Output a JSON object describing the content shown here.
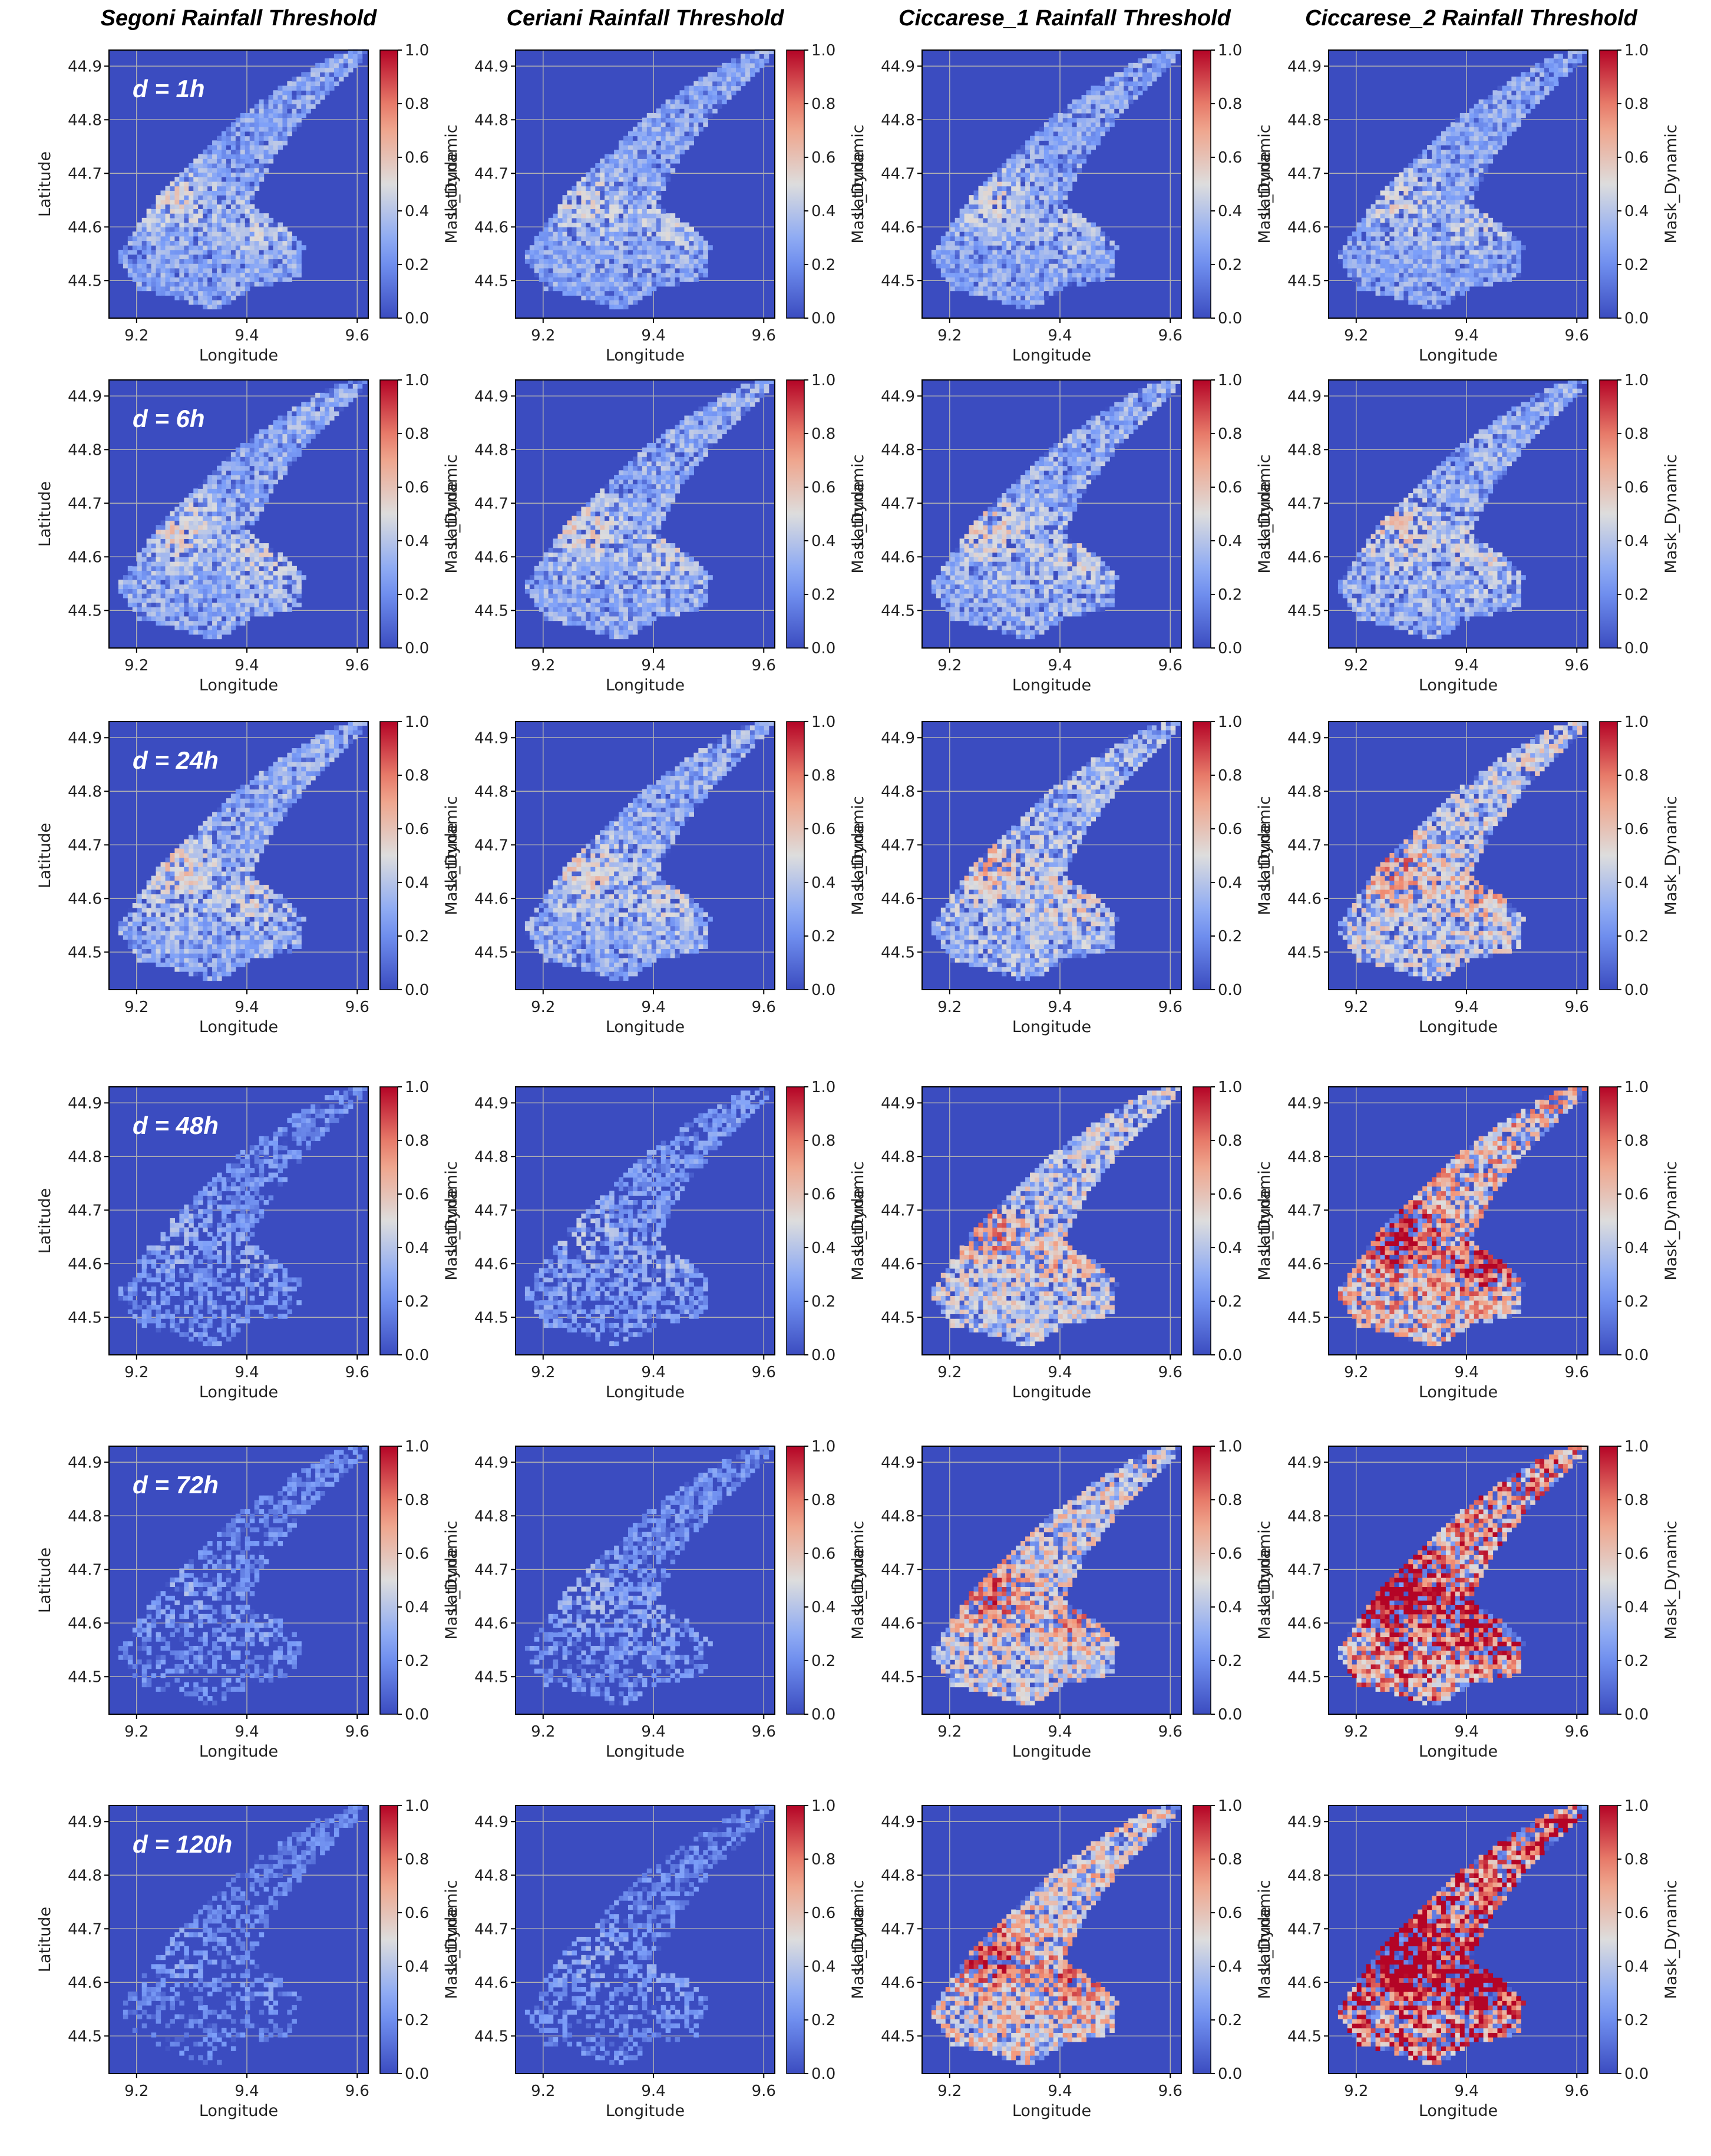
{
  "figure": {
    "columns": [
      "Segoni Rainfall Threshold",
      "Ceriani Rainfall Threshold",
      "Ciccarese_1 Rainfall Threshold",
      "Ciccarese_2 Rainfall Threshold"
    ],
    "rows": [
      "d = 1h",
      "d = 6h",
      "d = 24h",
      "d = 48h",
      "d = 72h",
      "d = 120h"
    ]
  },
  "chart_data": {
    "type": "heatmap",
    "layout": "6 rows x 4 columns of maps",
    "xlabel": "Longitude",
    "ylabel": "Latitude",
    "colorbar_label": "Mask_Dynamic",
    "colormap": "coolwarm",
    "colors": {
      "low": "#3b4cc0",
      "mid": "#dddddd",
      "high": "#b40426"
    },
    "xlim": [
      9.15,
      9.62
    ],
    "ylim": [
      44.43,
      44.93
    ],
    "xticks": [
      9.2,
      9.4,
      9.6
    ],
    "xtick_labels": [
      "9.2",
      "9.4",
      "9.6"
    ],
    "yticks": [
      44.5,
      44.6,
      44.7,
      44.8,
      44.9
    ],
    "ytick_labels": [
      "44.5",
      "44.6",
      "44.7",
      "44.8",
      "44.9"
    ],
    "colorbar_range": [
      0.0,
      1.0
    ],
    "colorbar_ticks": [
      0.0,
      0.2,
      0.4,
      0.6,
      0.8,
      1.0
    ],
    "colorbar_tick_labels": [
      "0.0",
      "0.2",
      "0.4",
      "0.6",
      "0.8",
      "1.0"
    ],
    "grid": true,
    "region_outline": [
      [
        9.62,
        44.93
      ],
      [
        9.58,
        44.88
      ],
      [
        9.5,
        44.8
      ],
      [
        9.44,
        44.72
      ],
      [
        9.4,
        44.64
      ],
      [
        9.46,
        44.6
      ],
      [
        9.5,
        44.56
      ],
      [
        9.49,
        44.5
      ],
      [
        9.4,
        44.48
      ],
      [
        9.34,
        44.44
      ],
      [
        9.28,
        44.46
      ],
      [
        9.2,
        44.48
      ],
      [
        9.16,
        44.54
      ],
      [
        9.2,
        44.6
      ],
      [
        9.24,
        44.66
      ],
      [
        9.3,
        44.72
      ],
      [
        9.38,
        44.8
      ],
      [
        9.46,
        44.86
      ],
      [
        9.56,
        44.92
      ]
    ],
    "durations": [
      "d = 1h",
      "d = 6h",
      "d = 24h",
      "d = 48h",
      "d = 72h",
      "d = 120h"
    ],
    "thresholds": [
      "Segoni",
      "Ceriani",
      "Ciccarese_1",
      "Ciccarese_2"
    ],
    "mean_mask_intensity_estimate": {
      "series": [
        {
          "name": "Segoni Rainfall Threshold",
          "values": [
            0.3,
            0.32,
            0.33,
            0.22,
            0.2,
            0.18
          ]
        },
        {
          "name": "Ceriani Rainfall Threshold",
          "values": [
            0.3,
            0.32,
            0.33,
            0.24,
            0.22,
            0.2
          ]
        },
        {
          "name": "Ciccarese_1 Rainfall Threshold",
          "values": [
            0.3,
            0.33,
            0.38,
            0.45,
            0.5,
            0.55
          ]
        },
        {
          "name": "Ciccarese_2 Rainfall Threshold",
          "values": [
            0.3,
            0.34,
            0.45,
            0.62,
            0.72,
            0.82
          ]
        }
      ]
    },
    "coverage_fraction_estimate": {
      "series": [
        {
          "name": "Segoni Rainfall Threshold",
          "values": [
            1.0,
            1.0,
            1.0,
            0.55,
            0.45,
            0.35
          ]
        },
        {
          "name": "Ceriani Rainfall Threshold",
          "values": [
            1.0,
            1.0,
            1.0,
            0.65,
            0.55,
            0.45
          ]
        },
        {
          "name": "Ciccarese_1 Rainfall Threshold",
          "values": [
            1.0,
            1.0,
            1.0,
            1.0,
            1.0,
            1.0
          ]
        },
        {
          "name": "Ciccarese_2 Rainfall Threshold",
          "values": [
            1.0,
            1.0,
            1.0,
            1.0,
            1.0,
            1.0
          ]
        }
      ]
    }
  }
}
